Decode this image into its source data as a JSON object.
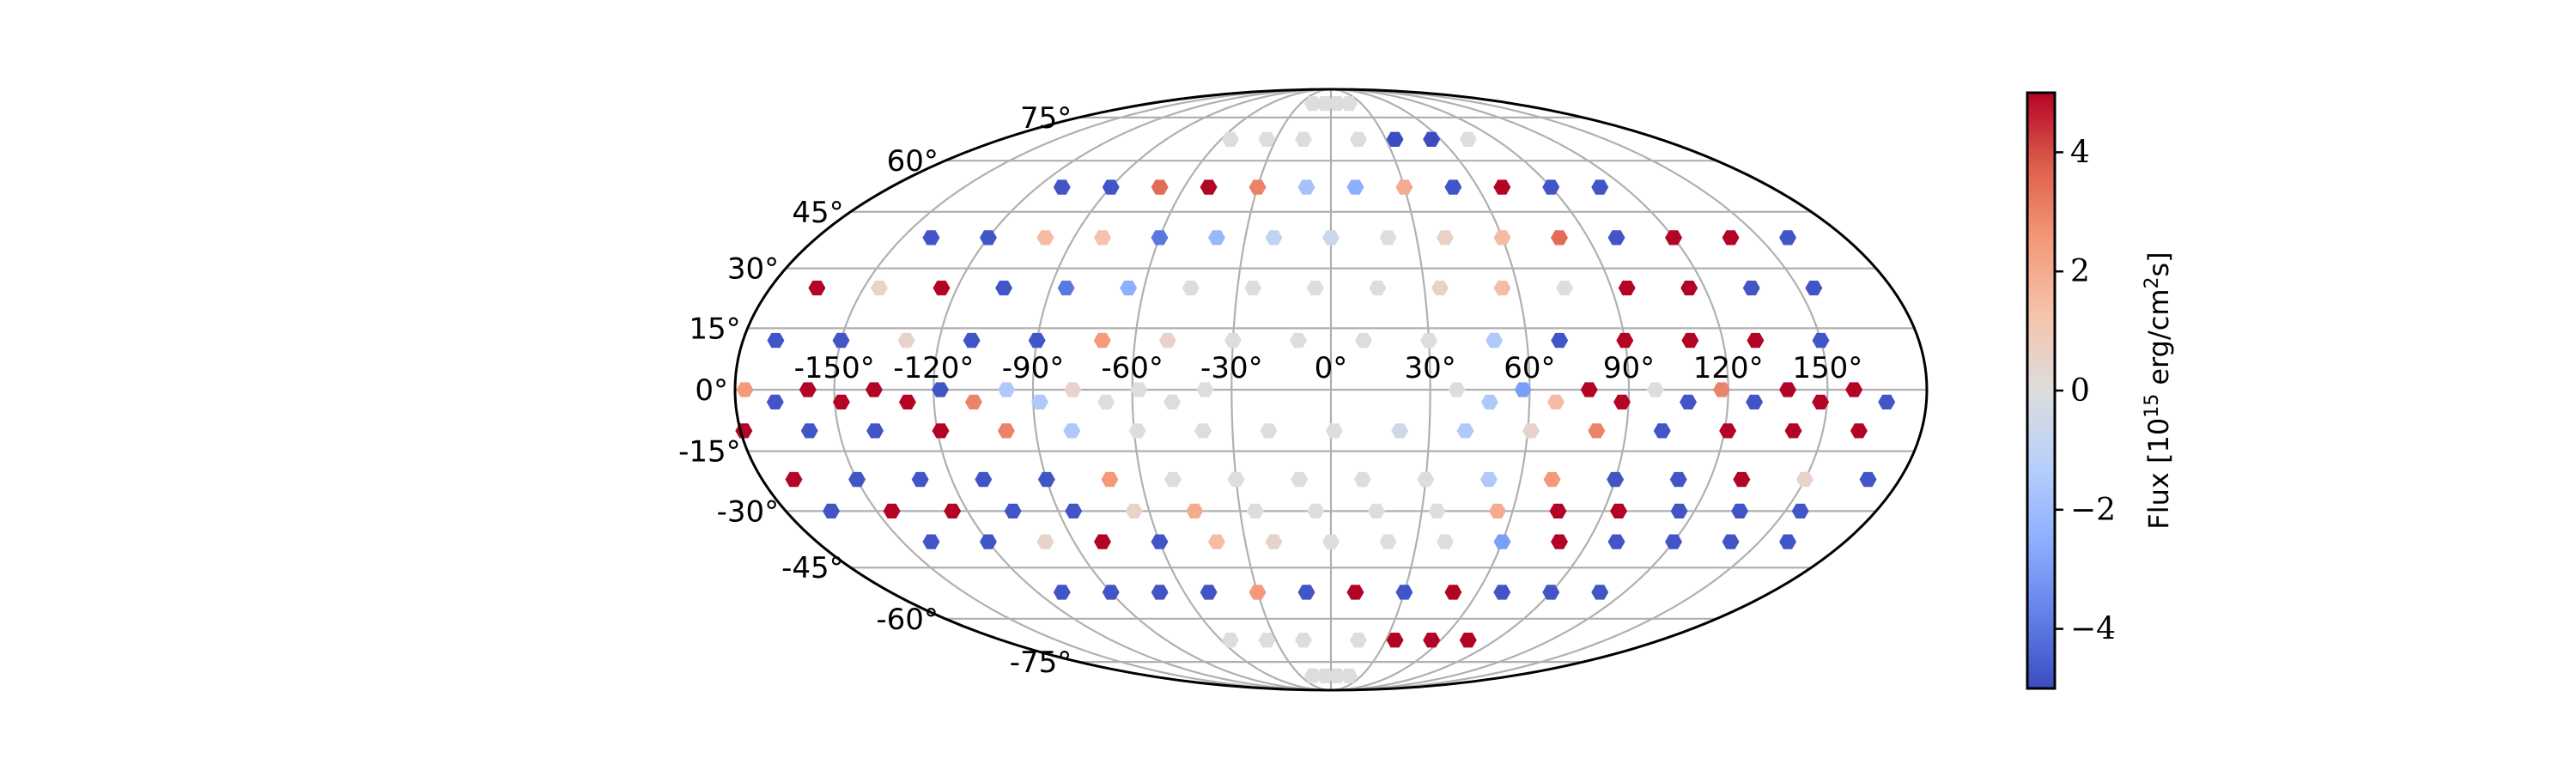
{
  "chart_data": {
    "type": "scatter",
    "projection": "mollweide",
    "marker": "hexagon",
    "grid": true,
    "longitude_ticks": [
      "-150°",
      "-120°",
      "-90°",
      "-60°",
      "-30°",
      "0°",
      "30°",
      "60°",
      "90°",
      "120°",
      "150°"
    ],
    "latitude_ticks": [
      "-75°",
      "-60°",
      "-45°",
      "-30°",
      "-15°",
      "0°",
      "15°",
      "30°",
      "45°",
      "60°",
      "75°"
    ],
    "colorbar": {
      "label": "Flux [10^15 erg/cm^2 s]",
      "label_prefix": "Flux [10",
      "label_exponent": "15",
      "label_suffix": " erg/cm",
      "label_exponent2": "2",
      "label_end": "s]",
      "vmin": -5,
      "vmax": 5,
      "ticks": [
        -4,
        -2,
        0,
        2,
        4
      ],
      "tick_labels": [
        "−4",
        "−2",
        "0",
        "2",
        "4"
      ],
      "colormap": "coolwarm",
      "position": "right"
    },
    "points": [
      {
        "lon": -6,
        "lat": 81,
        "flux": 0.0
      },
      {
        "lon": 6,
        "lat": 81,
        "flux": 0.0
      },
      {
        "lon": -18,
        "lat": 81,
        "flux": 0.0
      },
      {
        "lon": 18,
        "lat": 81,
        "flux": 0.0
      },
      {
        "lon": -55,
        "lat": 67,
        "flux": 0.0
      },
      {
        "lon": -35,
        "lat": 67,
        "flux": 0.0
      },
      {
        "lon": -15,
        "lat": 67,
        "flux": 0.0
      },
      {
        "lon": 15,
        "lat": 67,
        "flux": 0.0
      },
      {
        "lon": 35,
        "lat": 67,
        "flux": -5.0
      },
      {
        "lon": 55,
        "lat": 67,
        "flux": -5.0
      },
      {
        "lon": 75,
        "lat": 67,
        "flux": 0.0
      },
      {
        "lon": -110,
        "lat": 52,
        "flux": -4.8
      },
      {
        "lon": -90,
        "lat": 52,
        "flux": -4.8
      },
      {
        "lon": -70,
        "lat": 52,
        "flux": 3.5
      },
      {
        "lon": -50,
        "lat": 52,
        "flux": 5.0
      },
      {
        "lon": -30,
        "lat": 52,
        "flux": 3.0
      },
      {
        "lon": -10,
        "lat": 52,
        "flux": -1.8
      },
      {
        "lon": 10,
        "lat": 52,
        "flux": -2.5
      },
      {
        "lon": 30,
        "lat": 52,
        "flux": 2.0
      },
      {
        "lon": 50,
        "lat": 52,
        "flux": -4.8
      },
      {
        "lon": 70,
        "lat": 52,
        "flux": 5.0
      },
      {
        "lon": 90,
        "lat": 52,
        "flux": -4.8
      },
      {
        "lon": 110,
        "lat": 52,
        "flux": -4.8
      },
      {
        "lon": -140,
        "lat": 38,
        "flux": -4.8
      },
      {
        "lon": -120,
        "lat": 38,
        "flux": -4.8
      },
      {
        "lon": -100,
        "lat": 38,
        "flux": 1.5
      },
      {
        "lon": -80,
        "lat": 38,
        "flux": 1.3
      },
      {
        "lon": -60,
        "lat": 38,
        "flux": -4.0
      },
      {
        "lon": -40,
        "lat": 38,
        "flux": -2.2
      },
      {
        "lon": -20,
        "lat": 38,
        "flux": -1.0
      },
      {
        "lon": 0,
        "lat": 38,
        "flux": -0.6
      },
      {
        "lon": 20,
        "lat": 38,
        "flux": 0.0
      },
      {
        "lon": 40,
        "lat": 38,
        "flux": 0.6
      },
      {
        "lon": 60,
        "lat": 38,
        "flux": 1.5
      },
      {
        "lon": 80,
        "lat": 38,
        "flux": 3.5
      },
      {
        "lon": 100,
        "lat": 38,
        "flux": -4.8
      },
      {
        "lon": 120,
        "lat": 38,
        "flux": 5.0
      },
      {
        "lon": 140,
        "lat": 38,
        "flux": 5.0
      },
      {
        "lon": 160,
        "lat": 38,
        "flux": -4.8
      },
      {
        "lon": -165,
        "lat": 25,
        "flux": 5.0
      },
      {
        "lon": -145,
        "lat": 25,
        "flux": 0.5
      },
      {
        "lon": -125,
        "lat": 25,
        "flux": 5.0
      },
      {
        "lon": -105,
        "lat": 25,
        "flux": -4.8
      },
      {
        "lon": -85,
        "lat": 25,
        "flux": -4.0
      },
      {
        "lon": -65,
        "lat": 25,
        "flux": -2.5
      },
      {
        "lon": -45,
        "lat": 25,
        "flux": 0.0
      },
      {
        "lon": -25,
        "lat": 25,
        "flux": 0.0
      },
      {
        "lon": -5,
        "lat": 25,
        "flux": 0.0
      },
      {
        "lon": 15,
        "lat": 25,
        "flux": 0.0
      },
      {
        "lon": 35,
        "lat": 25,
        "flux": 0.5
      },
      {
        "lon": 55,
        "lat": 25,
        "flux": 1.5
      },
      {
        "lon": 75,
        "lat": 25,
        "flux": 0.0
      },
      {
        "lon": 95,
        "lat": 25,
        "flux": 5.0
      },
      {
        "lon": 115,
        "lat": 25,
        "flux": 5.0
      },
      {
        "lon": 135,
        "lat": 25,
        "flux": -4.8
      },
      {
        "lon": 155,
        "lat": 25,
        "flux": -4.8
      },
      {
        "lon": -170,
        "lat": 12,
        "flux": -4.8
      },
      {
        "lon": -150,
        "lat": 12,
        "flux": -4.8
      },
      {
        "lon": -130,
        "lat": 12,
        "flux": 0.5
      },
      {
        "lon": -110,
        "lat": 12,
        "flux": -4.8
      },
      {
        "lon": -90,
        "lat": 12,
        "flux": -4.8
      },
      {
        "lon": -70,
        "lat": 12,
        "flux": 2.5
      },
      {
        "lon": -50,
        "lat": 12,
        "flux": 0.5
      },
      {
        "lon": -30,
        "lat": 12,
        "flux": 0.0
      },
      {
        "lon": -10,
        "lat": 12,
        "flux": 0.0
      },
      {
        "lon": 10,
        "lat": 12,
        "flux": 0.0
      },
      {
        "lon": 30,
        "lat": 12,
        "flux": 0.0
      },
      {
        "lon": 50,
        "lat": 12,
        "flux": -1.5
      },
      {
        "lon": 70,
        "lat": 12,
        "flux": -4.8
      },
      {
        "lon": 90,
        "lat": 12,
        "flux": 5.0
      },
      {
        "lon": 110,
        "lat": 12,
        "flux": 5.0
      },
      {
        "lon": 130,
        "lat": 12,
        "flux": 5.0
      },
      {
        "lon": 150,
        "lat": 12,
        "flux": -4.8
      },
      {
        "lon": -177,
        "lat": 0,
        "flux": 2.5
      },
      {
        "lon": -158,
        "lat": 0,
        "flux": 5.0
      },
      {
        "lon": -138,
        "lat": 0,
        "flux": 5.0
      },
      {
        "lon": -118,
        "lat": 0,
        "flux": -4.8
      },
      {
        "lon": -98,
        "lat": 0,
        "flux": -1.5
      },
      {
        "lon": -78,
        "lat": 0,
        "flux": 0.5
      },
      {
        "lon": -58,
        "lat": 0,
        "flux": 0.0
      },
      {
        "lon": -38,
        "lat": 0,
        "flux": 0.0
      },
      {
        "lon": 38,
        "lat": 0,
        "flux": 0.0
      },
      {
        "lon": 58,
        "lat": 0,
        "flux": -3.0
      },
      {
        "lon": 78,
        "lat": 0,
        "flux": 5.0
      },
      {
        "lon": 98,
        "lat": 0,
        "flux": 0.0
      },
      {
        "lon": 118,
        "lat": 0,
        "flux": 3.0
      },
      {
        "lon": 138,
        "lat": 0,
        "flux": 5.0
      },
      {
        "lon": 158,
        "lat": 0,
        "flux": 5.0
      },
      {
        "lon": -168,
        "lat": -3,
        "flux": -4.8
      },
      {
        "lon": -148,
        "lat": -3,
        "flux": 5.0
      },
      {
        "lon": -128,
        "lat": -3,
        "flux": 5.0
      },
      {
        "lon": -108,
        "lat": -3,
        "flux": 3.0
      },
      {
        "lon": -88,
        "lat": -3,
        "flux": -1.5
      },
      {
        "lon": -68,
        "lat": -3,
        "flux": 0.0
      },
      {
        "lon": -48,
        "lat": -3,
        "flux": 0.0
      },
      {
        "lon": 48,
        "lat": -3,
        "flux": -1.5
      },
      {
        "lon": 68,
        "lat": -3,
        "flux": 1.5
      },
      {
        "lon": 88,
        "lat": -3,
        "flux": 5.0
      },
      {
        "lon": 108,
        "lat": -3,
        "flux": -4.8
      },
      {
        "lon": 128,
        "lat": -3,
        "flux": -4.8
      },
      {
        "lon": 148,
        "lat": -3,
        "flux": 5.0
      },
      {
        "lon": 168,
        "lat": -3,
        "flux": -4.8
      },
      {
        "lon": -179,
        "lat": -10,
        "flux": 5.0
      },
      {
        "lon": -159,
        "lat": -10,
        "flux": -4.8
      },
      {
        "lon": -139,
        "lat": -10,
        "flux": -4.8
      },
      {
        "lon": -119,
        "lat": -10,
        "flux": 5.0
      },
      {
        "lon": -99,
        "lat": -10,
        "flux": 3.0
      },
      {
        "lon": -79,
        "lat": -10,
        "flux": -1.5
      },
      {
        "lon": -59,
        "lat": -10,
        "flux": 0.0
      },
      {
        "lon": -39,
        "lat": -10,
        "flux": 0.0
      },
      {
        "lon": -19,
        "lat": -10,
        "flux": 0.0
      },
      {
        "lon": 1,
        "lat": -10,
        "flux": 0.0
      },
      {
        "lon": 21,
        "lat": -10,
        "flux": -0.5
      },
      {
        "lon": 41,
        "lat": -10,
        "flux": -1.5
      },
      {
        "lon": 61,
        "lat": -10,
        "flux": 0.5
      },
      {
        "lon": 81,
        "lat": -10,
        "flux": 3.0
      },
      {
        "lon": 101,
        "lat": -10,
        "flux": -4.8
      },
      {
        "lon": 121,
        "lat": -10,
        "flux": 5.0
      },
      {
        "lon": 141,
        "lat": -10,
        "flux": 5.0
      },
      {
        "lon": 161,
        "lat": -10,
        "flux": 5.0
      },
      {
        "lon": -170,
        "lat": -22,
        "flux": 5.0
      },
      {
        "lon": -150,
        "lat": -22,
        "flux": -4.8
      },
      {
        "lon": -130,
        "lat": -22,
        "flux": -4.8
      },
      {
        "lon": -110,
        "lat": -22,
        "flux": -4.8
      },
      {
        "lon": -90,
        "lat": -22,
        "flux": -4.8
      },
      {
        "lon": -70,
        "lat": -22,
        "flux": 2.5
      },
      {
        "lon": -50,
        "lat": -22,
        "flux": 0.0
      },
      {
        "lon": -30,
        "lat": -22,
        "flux": 0.0
      },
      {
        "lon": -10,
        "lat": -22,
        "flux": 0.0
      },
      {
        "lon": 10,
        "lat": -22,
        "flux": 0.0
      },
      {
        "lon": 30,
        "lat": -22,
        "flux": 0.0
      },
      {
        "lon": 50,
        "lat": -22,
        "flux": -1.5
      },
      {
        "lon": 70,
        "lat": -22,
        "flux": 2.5
      },
      {
        "lon": 90,
        "lat": -22,
        "flux": -4.8
      },
      {
        "lon": 110,
        "lat": -22,
        "flux": -4.8
      },
      {
        "lon": 130,
        "lat": -22,
        "flux": 5.0
      },
      {
        "lon": 150,
        "lat": -22,
        "flux": 0.5
      },
      {
        "lon": 170,
        "lat": -22,
        "flux": -4.8
      },
      {
        "lon": -165,
        "lat": -30,
        "flux": -4.8
      },
      {
        "lon": -145,
        "lat": -30,
        "flux": 5.0
      },
      {
        "lon": -125,
        "lat": -30,
        "flux": 5.0
      },
      {
        "lon": -105,
        "lat": -30,
        "flux": -4.8
      },
      {
        "lon": -85,
        "lat": -30,
        "flux": -4.8
      },
      {
        "lon": -65,
        "lat": -30,
        "flux": 0.5
      },
      {
        "lon": -45,
        "lat": -30,
        "flux": 2.0
      },
      {
        "lon": -25,
        "lat": -30,
        "flux": 0.0
      },
      {
        "lon": -5,
        "lat": -30,
        "flux": 0.0
      },
      {
        "lon": 15,
        "lat": -30,
        "flux": 0.0
      },
      {
        "lon": 35,
        "lat": -30,
        "flux": 0.0
      },
      {
        "lon": 55,
        "lat": -30,
        "flux": 2.0
      },
      {
        "lon": 75,
        "lat": -30,
        "flux": 5.0
      },
      {
        "lon": 95,
        "lat": -30,
        "flux": 5.0
      },
      {
        "lon": 115,
        "lat": -30,
        "flux": -4.8
      },
      {
        "lon": 135,
        "lat": -30,
        "flux": -4.8
      },
      {
        "lon": 155,
        "lat": -30,
        "flux": -4.8
      },
      {
        "lon": -140,
        "lat": -38,
        "flux": -4.8
      },
      {
        "lon": -120,
        "lat": -38,
        "flux": -4.8
      },
      {
        "lon": -100,
        "lat": -38,
        "flux": 0.5
      },
      {
        "lon": -80,
        "lat": -38,
        "flux": 5.0
      },
      {
        "lon": -60,
        "lat": -38,
        "flux": -4.8
      },
      {
        "lon": -40,
        "lat": -38,
        "flux": 1.5
      },
      {
        "lon": -20,
        "lat": -38,
        "flux": 0.5
      },
      {
        "lon": 0,
        "lat": -38,
        "flux": 0.0
      },
      {
        "lon": 20,
        "lat": -38,
        "flux": 0.0
      },
      {
        "lon": 40,
        "lat": -38,
        "flux": 0.0
      },
      {
        "lon": 60,
        "lat": -38,
        "flux": -3.0
      },
      {
        "lon": 80,
        "lat": -38,
        "flux": 5.0
      },
      {
        "lon": 100,
        "lat": -38,
        "flux": -4.8
      },
      {
        "lon": 120,
        "lat": -38,
        "flux": -4.8
      },
      {
        "lon": 140,
        "lat": -38,
        "flux": -4.8
      },
      {
        "lon": 160,
        "lat": -38,
        "flux": -4.8
      },
      {
        "lon": -110,
        "lat": -52,
        "flux": -4.8
      },
      {
        "lon": -90,
        "lat": -52,
        "flux": -4.8
      },
      {
        "lon": -70,
        "lat": -52,
        "flux": -4.8
      },
      {
        "lon": -50,
        "lat": -52,
        "flux": -4.8
      },
      {
        "lon": -30,
        "lat": -52,
        "flux": 2.5
      },
      {
        "lon": -10,
        "lat": -52,
        "flux": -4.8
      },
      {
        "lon": 10,
        "lat": -52,
        "flux": 5.0
      },
      {
        "lon": 30,
        "lat": -52,
        "flux": -4.8
      },
      {
        "lon": 50,
        "lat": -52,
        "flux": 5.0
      },
      {
        "lon": 70,
        "lat": -52,
        "flux": -4.8
      },
      {
        "lon": 90,
        "lat": -52,
        "flux": -4.8
      },
      {
        "lon": 110,
        "lat": -52,
        "flux": -4.8
      },
      {
        "lon": -55,
        "lat": -67,
        "flux": 0.0
      },
      {
        "lon": -35,
        "lat": -67,
        "flux": 0.0
      },
      {
        "lon": -15,
        "lat": -67,
        "flux": 0.0
      },
      {
        "lon": 15,
        "lat": -67,
        "flux": 0.0
      },
      {
        "lon": 35,
        "lat": -67,
        "flux": 5.0
      },
      {
        "lon": 55,
        "lat": -67,
        "flux": 5.0
      },
      {
        "lon": 75,
        "lat": -67,
        "flux": 5.0
      },
      {
        "lon": -6,
        "lat": -81,
        "flux": 0.0
      },
      {
        "lon": 6,
        "lat": -81,
        "flux": 0.0
      },
      {
        "lon": -18,
        "lat": -81,
        "flux": 0.0
      },
      {
        "lon": 18,
        "lat": -81,
        "flux": 0.0
      }
    ]
  }
}
